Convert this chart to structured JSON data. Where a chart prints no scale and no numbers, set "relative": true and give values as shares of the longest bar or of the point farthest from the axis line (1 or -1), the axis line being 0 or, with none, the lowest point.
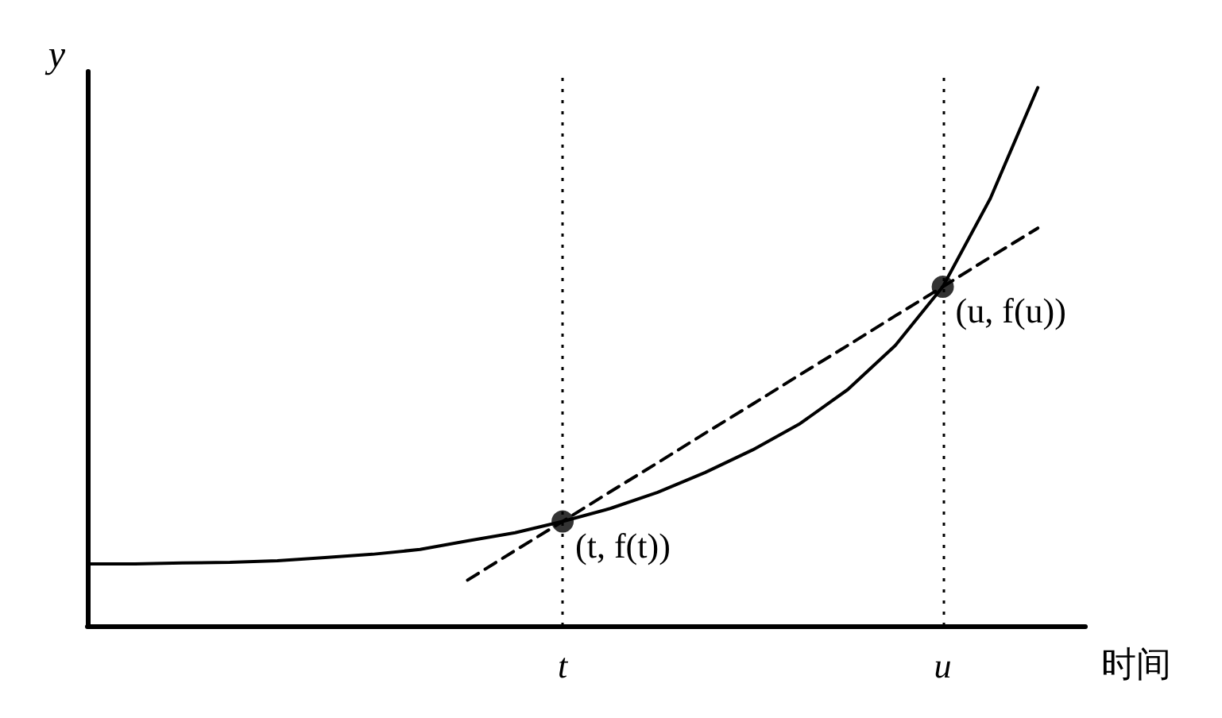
{
  "chart_data": {
    "type": "line",
    "relative": true,
    "xlabel": "时间",
    "ylabel": "y",
    "categories": [
      null,
      null,
      null,
      null,
      null,
      null,
      null,
      null,
      null,
      null,
      "t",
      null,
      null,
      null,
      null,
      null,
      null,
      null,
      "u",
      null,
      null,
      null
    ],
    "series": [
      {
        "color": "#000000",
        "line_style": "solid",
        "marker": "none",
        "values": [
          0.115,
          0.115,
          0.117,
          0.118,
          0.121,
          0.127,
          0.133,
          0.142,
          0.158,
          0.173,
          0.194,
          0.218,
          0.248,
          0.285,
          0.327,
          0.376,
          0.439,
          0.521,
          0.63,
          0.794,
          1,
          null
        ]
      },
      {
        "color": "#000000",
        "line_style": "dashed",
        "marker": "none",
        "values": [
          null,
          null,
          null,
          null,
          null,
          null,
          null,
          null,
          0.085,
          0.14,
          0.194,
          0.249,
          0.303,
          0.358,
          0.412,
          0.467,
          0.521,
          0.576,
          0.63,
          0.685,
          0.739,
          null
        ]
      },
      {
        "type": "scatter",
        "color": "#000000",
        "marker": "circle",
        "values": [
          null,
          null,
          null,
          null,
          null,
          null,
          null,
          null,
          null,
          null,
          0.194,
          null,
          null,
          null,
          null,
          null,
          null,
          null,
          0.63,
          null,
          null,
          null
        ]
      }
    ],
    "ref_lines": [
      {
        "axis": "x",
        "value": "t",
        "line_style": "dotted",
        "color": "#000000"
      },
      {
        "axis": "x",
        "value": "u",
        "line_style": "dotted",
        "color": "#000000"
      }
    ],
    "annotations": [
      {
        "text": "(t, f(t))",
        "x": "t",
        "y": 0.194
      },
      {
        "text": "(u, f(u))",
        "x": "u",
        "y": 0.63
      }
    ],
    "grid": false
  }
}
